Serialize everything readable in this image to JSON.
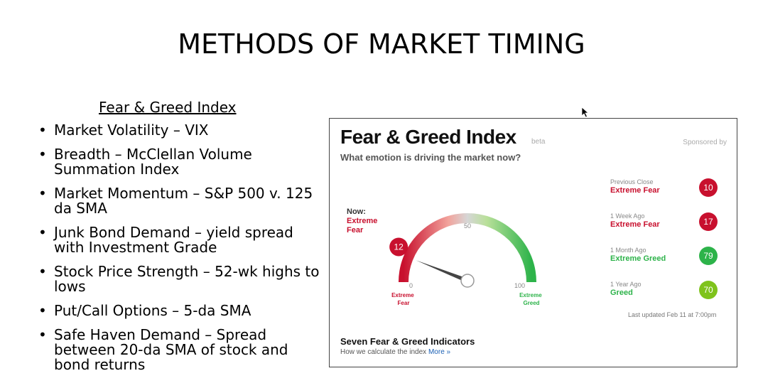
{
  "slide": {
    "title": "METHODS OF MARKET TIMING",
    "list_heading": "Fear & Greed Index",
    "bullets": [
      "Market Volatility – VIX",
      "Breadth – McClellan Volume Summation Index",
      "Market Momentum – S&P 500 v. 125 da SMA",
      "Junk Bond Demand – yield spread with Investment Grade",
      "Stock Price Strength – 52-wk highs to lows",
      "Put/Call Options – 5-da SMA",
      "Safe Haven Demand – Spread between 20-da SMA of stock and bond returns"
    ]
  },
  "panel": {
    "title": "Fear & Greed Index",
    "beta": "beta",
    "sponsored": "Sponsored by",
    "subtitle": "What emotion is driving the market now?",
    "now_label": "Now:",
    "now_value": "Extreme Fear",
    "gauge": {
      "current": 12,
      "current_text": "12",
      "min_text": "0",
      "mid_text": "50",
      "max_text": "100",
      "low_label": [
        "Extreme",
        "Fear"
      ],
      "high_label": [
        "Extreme",
        "Greed"
      ]
    },
    "history": [
      {
        "period": "Previous Close",
        "label": "Extreme Fear",
        "value": "10",
        "color": "#c8102e",
        "kind": "fear"
      },
      {
        "period": "1 Week Ago",
        "label": "Extreme Fear",
        "value": "17",
        "color": "#c8102e",
        "kind": "fear"
      },
      {
        "period": "1 Month Ago",
        "label": "Extreme Greed",
        "value": "79",
        "color": "#2db34a",
        "kind": "greed"
      },
      {
        "period": "1 Year Ago",
        "label": "Greed",
        "value": "70",
        "color": "#7fc31c",
        "kind": "greed"
      }
    ],
    "last_updated": "Last updated Feb 11 at 7:00pm",
    "seven_title": "Seven Fear & Greed Indicators",
    "seven_sub": "How we calculate the index",
    "more_link": "More »"
  }
}
